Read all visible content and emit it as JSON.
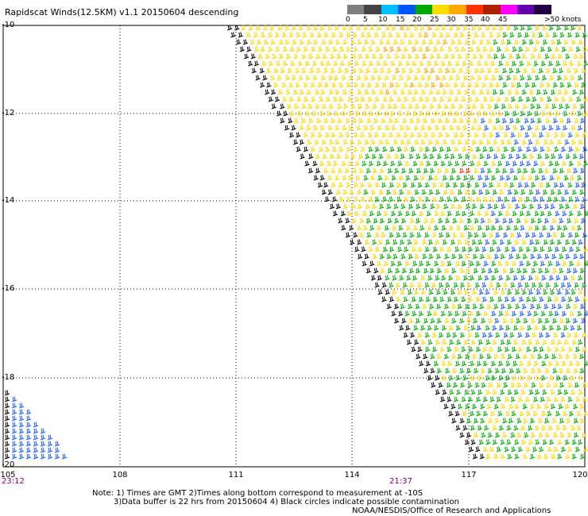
{
  "title": "Rapidscat Winds(12.5KM) v1.1 20150604 descending",
  "legend": {
    "labels": [
      "0",
      "5",
      "10",
      "15",
      "20",
      "25",
      "30",
      "35",
      "40",
      "45",
      ">50 knots"
    ],
    "colors": [
      "#7f7f7f",
      "#444444",
      "#00bfff",
      "#0055ff",
      "#00aa00",
      "#ffdd00",
      "#ffaa00",
      "#ff3300",
      "#aa2200",
      "#ff00ff",
      "#6600aa",
      "#220044"
    ]
  },
  "axes": {
    "lat_labels": [
      "-10",
      "-12",
      "-14",
      "-16",
      "-18",
      "-20"
    ],
    "lon_labels": [
      "105",
      "108",
      "111",
      "114",
      "117",
      "120"
    ]
  },
  "times": {
    "left": "23:12",
    "middle": "21:37"
  },
  "notes": {
    "line1": "Note: 1) Times are GMT 2)Times along bottom correspond to measurement at -10S",
    "line2": "3)Data buffer is 22 hrs from 20150604 4) Black circles indicate possible contamination",
    "line3": "NOAA/NESDIS/Office of Research and Applications"
  },
  "wind_colors": {
    "calm": "#000000",
    "light": "#1e5aff",
    "moderate": "#00aa00",
    "fresh": "#ffd700",
    "strong": "#ffa500",
    "gale": "#ff2a00"
  }
}
